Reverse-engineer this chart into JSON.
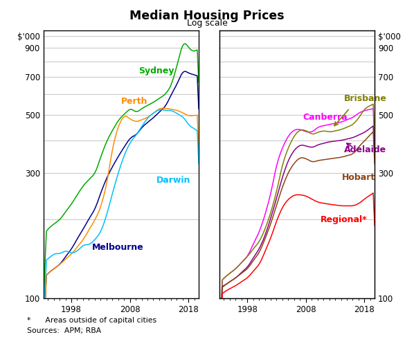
{
  "title": "Median Housing Prices",
  "subtitle": "Log scale",
  "footnote1": "*      Areas outside of capital cities",
  "footnote2": "Sources:  APM; RBA",
  "ylim_low": 100,
  "ylim_high": 1050,
  "yticks": [
    100,
    200,
    300,
    400,
    500,
    600,
    700,
    800,
    900,
    1000
  ],
  "ytick_labels_left": [
    "100",
    "",
    "300",
    "",
    "500",
    "",
    "700",
    "",
    "900",
    "$'000"
  ],
  "ytick_labels_right": [
    "100",
    "",
    "300",
    "",
    "500",
    "",
    "700",
    "",
    "900",
    "$'000"
  ],
  "xstart": 1993.25,
  "xend": 2019.75,
  "xticks": [
    1998,
    2008,
    2018
  ],
  "panel1_colors": {
    "Sydney": "#00AA00",
    "Melbourne": "#00008B",
    "Perth": "#FF8C00",
    "Darwin": "#00BFFF"
  },
  "panel2_colors": {
    "Canberra": "#FF00FF",
    "Brisbane": "#808000",
    "Adelaide": "#8B008B",
    "Hobart": "#8B4513",
    "Regional": "#FF0000"
  }
}
